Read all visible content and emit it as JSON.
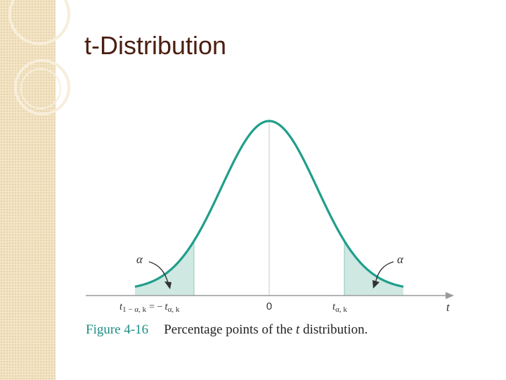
{
  "slide": {
    "title": "t-Distribution"
  },
  "diagram": {
    "alpha_symbol": "α",
    "zero_label": "0",
    "axis_label": "t",
    "left_label": {
      "t": "t",
      "sub1": "1 − α, k",
      "eq": "= −",
      "t2": "t",
      "sub2": "α, k"
    },
    "right_label": {
      "t": "t",
      "sub": "α, k"
    },
    "curve_color": "#1f9e8b",
    "fill_color": "#cfe8e2"
  },
  "caption": {
    "figure_number": "Figure 4-16",
    "text_before": "Percentage points of the ",
    "text_italic": "t",
    "text_after": " distribution."
  }
}
